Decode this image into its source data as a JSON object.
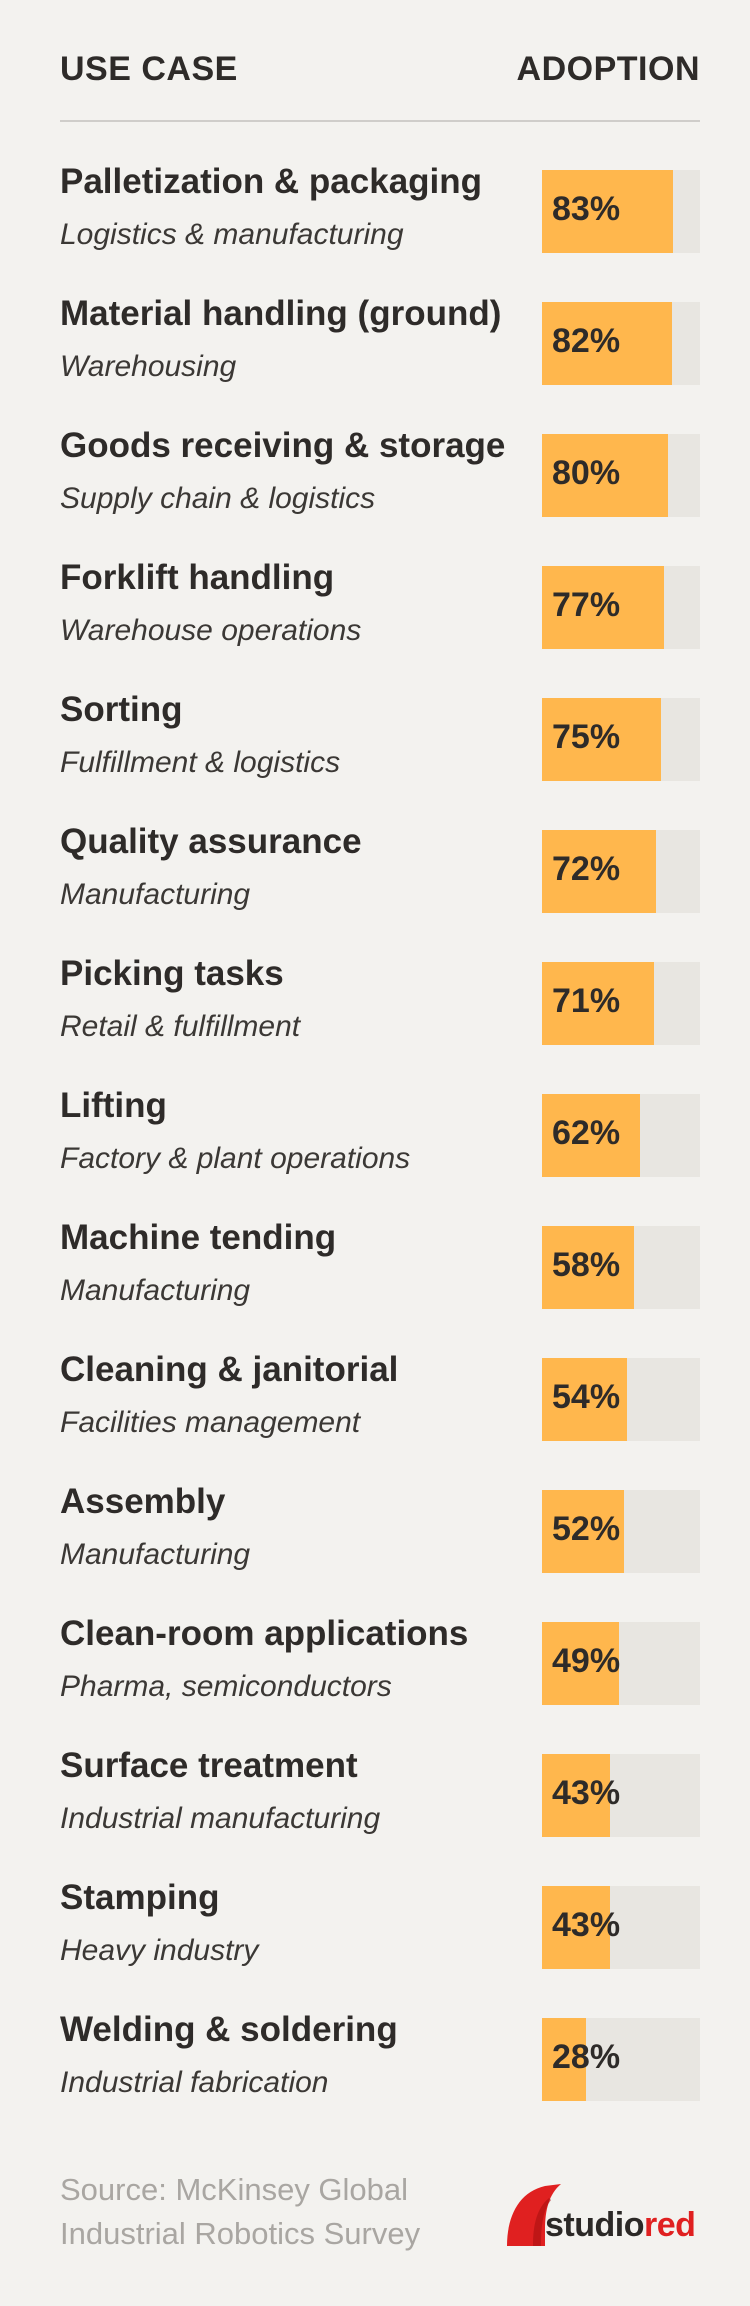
{
  "header": {
    "left": "USE CASE",
    "right": "ADOPTION"
  },
  "colors": {
    "bar_fill": "#ffb74d",
    "bar_track": "#e8e6e1",
    "background": "#f3f2ef",
    "brand_red": "#e02020"
  },
  "chart_data": {
    "type": "bar",
    "orientation": "horizontal",
    "xlim": [
      0,
      100
    ],
    "unit": "%",
    "categories": [
      "Palletization & packaging",
      "Material handling (ground)",
      "Goods receiving & storage",
      "Forklift handling",
      "Sorting",
      "Quality assurance",
      "Picking tasks",
      "Lifting",
      "Machine tending",
      "Cleaning & janitorial",
      "Assembly",
      "Clean-room applications",
      "Surface treatment",
      "Stamping",
      "Welding & soldering"
    ],
    "values": [
      83,
      82,
      80,
      77,
      75,
      72,
      71,
      62,
      58,
      54,
      52,
      49,
      43,
      43,
      28
    ],
    "rows": [
      {
        "label": "Palletization & packaging",
        "sub": "Logistics & manufacturing",
        "value": 83,
        "display": "83%"
      },
      {
        "label": "Material handling (ground)",
        "sub": "Warehousing",
        "value": 82,
        "display": "82%"
      },
      {
        "label": "Goods receiving & storage",
        "sub": "Supply chain & logistics",
        "value": 80,
        "display": "80%"
      },
      {
        "label": "Forklift handling",
        "sub": "Warehouse operations",
        "value": 77,
        "display": "77%"
      },
      {
        "label": "Sorting",
        "sub": "Fulfillment & logistics",
        "value": 75,
        "display": "75%"
      },
      {
        "label": "Quality assurance",
        "sub": "Manufacturing",
        "value": 72,
        "display": "72%"
      },
      {
        "label": "Picking tasks",
        "sub": "Retail & fulfillment",
        "value": 71,
        "display": "71%"
      },
      {
        "label": "Lifting",
        "sub": "Factory & plant operations",
        "value": 62,
        "display": "62%"
      },
      {
        "label": "Machine tending",
        "sub": "Manufacturing",
        "value": 58,
        "display": "58%"
      },
      {
        "label": "Cleaning & janitorial",
        "sub": "Facilities management",
        "value": 54,
        "display": "54%"
      },
      {
        "label": "Assembly",
        "sub": "Manufacturing",
        "value": 52,
        "display": "52%"
      },
      {
        "label": "Clean-room applications",
        "sub": "Pharma, semiconductors",
        "value": 49,
        "display": "49%"
      },
      {
        "label": "Surface treatment",
        "sub": "Industrial manufacturing",
        "value": 43,
        "display": "43%"
      },
      {
        "label": "Stamping",
        "sub": "Heavy industry",
        "value": 43,
        "display": "43%"
      },
      {
        "label": "Welding & soldering",
        "sub": "Industrial fabrication",
        "value": 28,
        "display": "28%"
      }
    ]
  },
  "footer": {
    "source_line1": "Source: McKinsey Global",
    "source_line2": "Industrial Robotics Survey",
    "logo_prefix": "studio",
    "logo_suffix": "red"
  }
}
